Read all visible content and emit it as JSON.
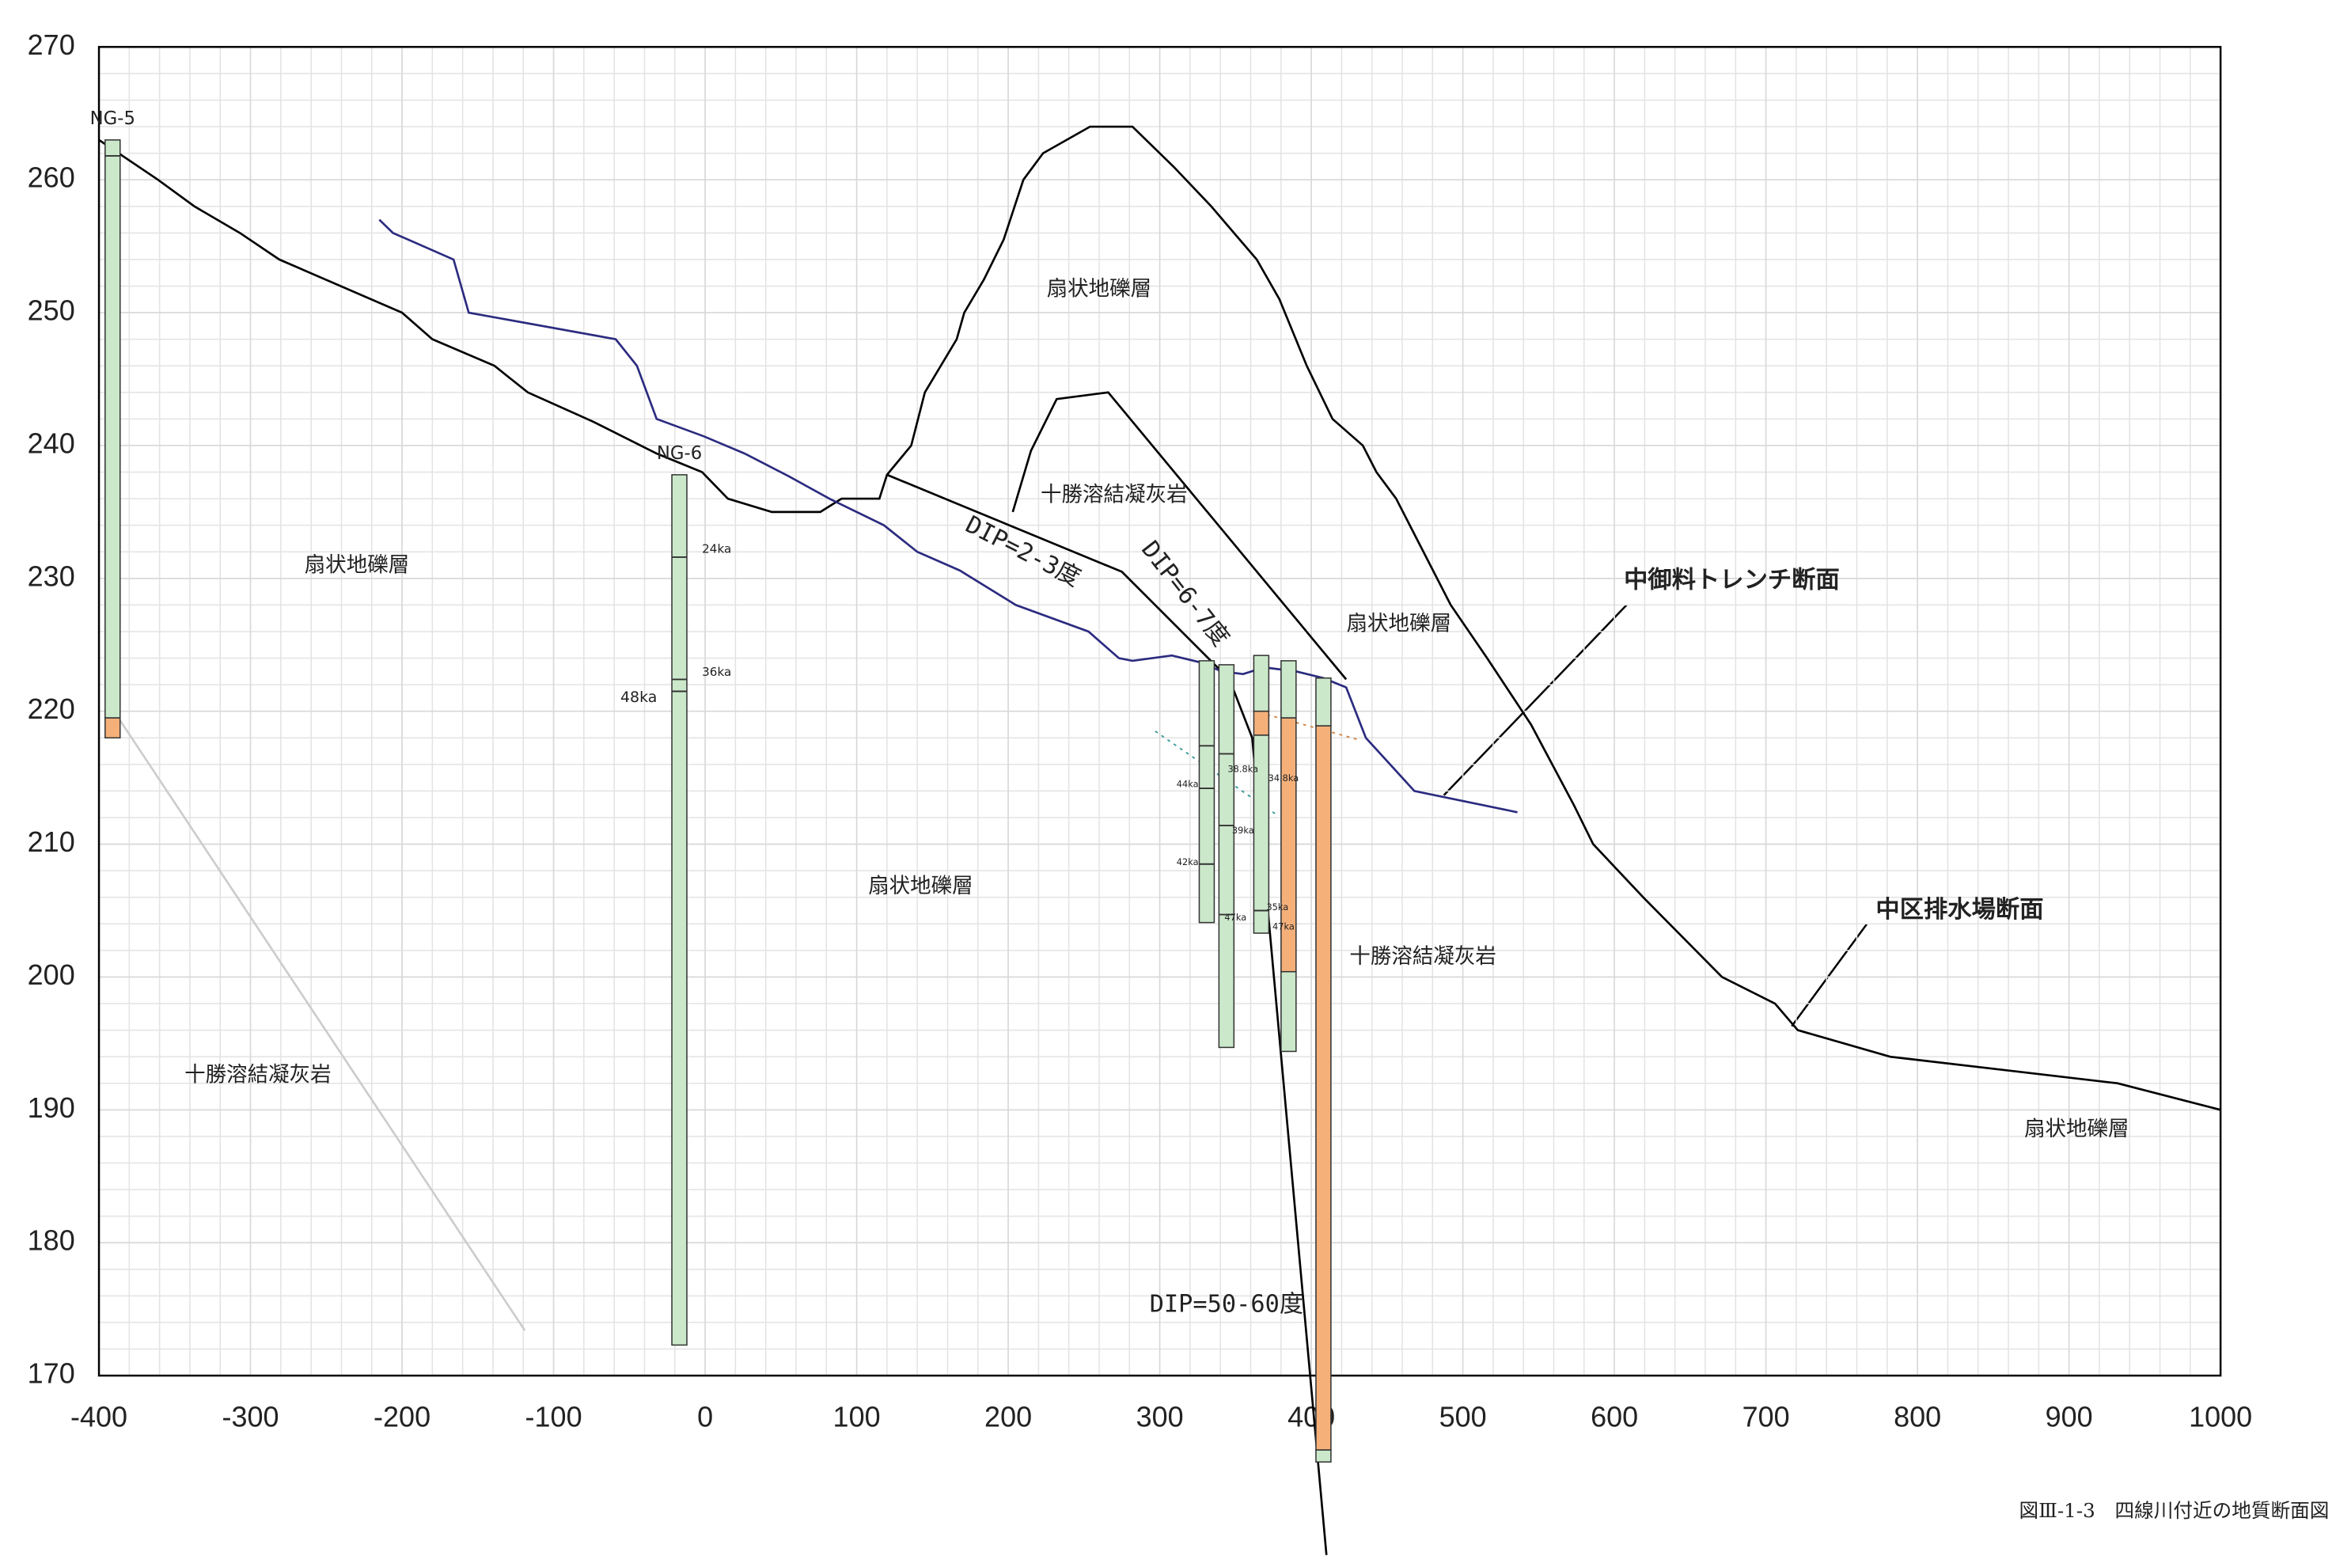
{
  "chart_data": {
    "type": "section",
    "xlim": [
      -400,
      1000
    ],
    "ylim": [
      170,
      270
    ],
    "xticks": [
      -400,
      -300,
      -200,
      -100,
      0,
      100,
      200,
      300,
      400,
      500,
      600,
      700,
      800,
      900,
      1000
    ],
    "yticks": [
      170,
      180,
      190,
      200,
      210,
      220,
      230,
      240,
      250,
      260,
      270
    ],
    "grid": true,
    "lines": [
      {
        "color": "#000000",
        "x": [
          -400,
          -361,
          -337,
          -307,
          -281,
          -200,
          -180,
          -139,
          -117,
          -74,
          -32,
          -2,
          15,
          44,
          76,
          90,
          115,
          120,
          136,
          145,
          166,
          171,
          184,
          197,
          210,
          223,
          254,
          282,
          309,
          334,
          349,
          364,
          379,
          397,
          414,
          434,
          443,
          456,
          474,
          492,
          516,
          545,
          573,
          586,
          619,
          671,
          706,
          721,
          782,
          932,
          1000
        ],
        "values": [
          263,
          260,
          258,
          256,
          254,
          250,
          248,
          246,
          244,
          241.8,
          239.4,
          238,
          236,
          235,
          235,
          236,
          236,
          237.8,
          240,
          244,
          248,
          250,
          252.5,
          255.5,
          260,
          262,
          264,
          264,
          261,
          258,
          256,
          254,
          251,
          246,
          242,
          240,
          238,
          236,
          232,
          228,
          224,
          219,
          213,
          210,
          206,
          200,
          198,
          196,
          194,
          192,
          190
        ]
      },
      {
        "color": "#000000",
        "x": [
          203,
          215,
          232,
          266,
          423
        ],
        "values": [
          235,
          239.6,
          243.5,
          244,
          222.4
        ]
      },
      {
        "color": "#000000",
        "x": [
          120,
          275,
          346,
          361,
          410
        ],
        "values": [
          237.8,
          230.5,
          222.4,
          218,
          156.5
        ]
      },
      {
        "color": "#2b2b80",
        "x": [
          -215,
          -206,
          -166,
          -156,
          -59,
          -45,
          -32,
          -1,
          26,
          55,
          82,
          118,
          140,
          168,
          205,
          253,
          273,
          282,
          308,
          326,
          341,
          355,
          369,
          390,
          408,
          423,
          436,
          468,
          536
        ],
        "values": [
          257,
          256,
          254,
          250,
          248,
          246,
          242,
          240.7,
          239.4,
          237.7,
          236,
          234,
          232,
          230.6,
          228,
          226,
          224,
          223.8,
          224.2,
          223.7,
          223,
          222.8,
          223.3,
          223,
          222.5,
          221.8,
          218,
          214,
          212.4
        ]
      },
      {
        "color": "#cccccc",
        "x": [
          -386,
          -119
        ],
        "values": [
          219.3,
          173.4
        ]
      },
      {
        "color": "#3a9a9a",
        "dash": true,
        "x": [
          297,
          376
        ],
        "values": [
          218.5,
          212.3
        ]
      },
      {
        "color": "#d08040",
        "dash": true,
        "x": [
          366,
          430
        ],
        "values": [
          219.9,
          217.9
        ]
      }
    ],
    "boreholes": [
      {
        "label": "NG-5",
        "x": -391,
        "segments": [
          {
            "top": 263,
            "bottom": 219.5,
            "color": "#cbe8cb"
          },
          {
            "top": 219.5,
            "bottom": 218,
            "color": "#f5b07a"
          }
        ],
        "marks": [
          261.8
        ]
      },
      {
        "label": "NG-6",
        "x": -17,
        "segments": [
          {
            "top": 237.8,
            "bottom": 172.3,
            "color": "#cbe8cb"
          }
        ],
        "marks": [
          231.6,
          222.4,
          221.5
        ]
      },
      {
        "x": 331,
        "segments": [
          {
            "top": 223.8,
            "bottom": 204.1,
            "color": "#cbe8cb"
          }
        ],
        "marks": [
          217.4,
          214.2,
          208.5
        ]
      },
      {
        "x": 344,
        "segments": [
          {
            "top": 223.5,
            "bottom": 194.7,
            "color": "#cbe8cb"
          }
        ],
        "marks": [
          216.8,
          211.4,
          204.7
        ]
      },
      {
        "x": 367,
        "segments": [
          {
            "top": 224.2,
            "bottom": 220,
            "color": "#cbe8cb"
          },
          {
            "top": 220,
            "bottom": 218.2,
            "color": "#f5b07a"
          },
          {
            "top": 218.2,
            "bottom": 203.3,
            "color": "#cbe8cb"
          }
        ],
        "marks": [
          205
        ]
      },
      {
        "x": 385,
        "segments": [
          {
            "top": 223.8,
            "bottom": 219.5,
            "color": "#cbe8cb"
          },
          {
            "top": 219.5,
            "bottom": 200.4,
            "color": "#f5b07a"
          },
          {
            "top": 200.4,
            "bottom": 194.4,
            "color": "#cbe8cb"
          }
        ],
        "marks": []
      },
      {
        "x": 408,
        "segments": [
          {
            "top": 222.5,
            "bottom": 218.9,
            "color": "#cbe8cb"
          },
          {
            "top": 218.9,
            "bottom": 164.4,
            "color": "#f5b07a"
          },
          {
            "top": 164.4,
            "bottom": 163.5,
            "color": "#cbe8cb"
          }
        ],
        "marks": []
      }
    ],
    "labels": [
      "扇状地礫層",
      "扇状地礫層",
      "扇状地礫層",
      "扇状地礫層",
      "扇状地礫層",
      "十勝溶結凝灰岩",
      "十勝溶結凝灰岩",
      "十勝溶結凝灰岩",
      "DIP=2-3度",
      "DIP=6-7度",
      "DIP=50-60度",
      "中御料トレンチ断面",
      "中区排水場断面",
      "24ka",
      "36ka",
      "48ka",
      "44ka",
      "42ka",
      "47ka",
      "38.8ka",
      "34.8ka",
      "39ka",
      "35ka",
      "47ka"
    ],
    "caption": "図Ⅲ-1-3　四線川付近の地質断面図"
  }
}
